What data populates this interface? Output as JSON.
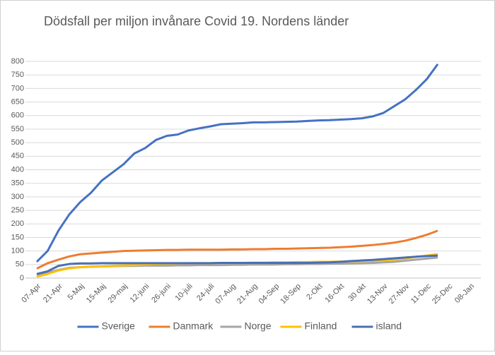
{
  "chart_data": {
    "type": "line",
    "title": "Dödsfall per miljon invånare Covid 19. Nordens länder",
    "categories": [
      "07-Apr",
      null,
      "21-Apr",
      null,
      "5-Maj",
      null,
      "15-Maj",
      null,
      "29-maj",
      null,
      "12-juni",
      null,
      "26-juni",
      null,
      "10-juli",
      null,
      "24-juli",
      null,
      "07-Aug",
      null,
      "21-Aug",
      null,
      "04-Sep",
      null,
      "18-Sep",
      null,
      "2-Okt",
      null,
      "16-Okt",
      null,
      "30 okt",
      null,
      "13-Nov",
      null,
      "27-Nov",
      null,
      "11-Dec",
      null,
      "25-Dec",
      null,
      "08-Jan"
    ],
    "series": [
      {
        "name": "Sverige",
        "color": "#4472c4",
        "values": [
          60,
          100,
          175,
          235,
          280,
          315,
          360,
          390,
          420,
          460,
          480,
          510,
          525,
          530,
          545,
          553,
          560,
          568,
          570,
          572,
          575,
          575,
          576,
          577,
          578,
          580,
          582,
          583,
          585,
          587,
          590,
          597,
          610,
          635,
          660,
          695,
          735,
          790,
          null,
          null,
          null
        ]
      },
      {
        "name": "Danmark",
        "color": "#ed7d31",
        "values": [
          35,
          55,
          68,
          80,
          88,
          91,
          94,
          97,
          100,
          101,
          102,
          103,
          104,
          104,
          105,
          105,
          105,
          105,
          106,
          106,
          107,
          107,
          108,
          108,
          109,
          110,
          111,
          112,
          114,
          116,
          119,
          122,
          126,
          131,
          138,
          148,
          160,
          175,
          null,
          null,
          null
        ]
      },
      {
        "name": "Norge",
        "color": "#a5a5a5",
        "values": [
          10,
          20,
          30,
          38,
          40,
          42,
          43,
          44,
          45,
          45,
          46,
          46,
          46,
          47,
          47,
          48,
          48,
          48,
          49,
          49,
          50,
          50,
          50,
          51,
          51,
          52,
          52,
          53,
          53,
          54,
          55,
          56,
          58,
          60,
          64,
          68,
          72,
          76,
          null,
          null,
          null
        ]
      },
      {
        "name": "Finland",
        "color": "#ffc000",
        "values": [
          5,
          15,
          28,
          36,
          40,
          42,
          43,
          45,
          47,
          48,
          50,
          52,
          53,
          54,
          55,
          55,
          55,
          56,
          56,
          56,
          57,
          57,
          58,
          58,
          59,
          59,
          60,
          60,
          61,
          62,
          63,
          64,
          66,
          68,
          72,
          78,
          83,
          88,
          null,
          null,
          null
        ]
      },
      {
        "name": "island",
        "color": "#4a6fb5",
        "values": [
          15,
          25,
          45,
          52,
          54,
          54,
          55,
          55,
          55,
          55,
          55,
          55,
          55,
          55,
          55,
          55,
          55,
          56,
          56,
          56,
          56,
          56,
          56,
          56,
          56,
          56,
          57,
          58,
          60,
          63,
          65,
          67,
          70,
          73,
          76,
          79,
          81,
          83,
          null,
          null,
          null
        ]
      }
    ],
    "ylim": [
      0,
      800
    ],
    "yticks": [
      0,
      50,
      100,
      150,
      200,
      250,
      300,
      350,
      400,
      450,
      500,
      550,
      600,
      650,
      700,
      750,
      800
    ],
    "grid": true,
    "legend": "bottom"
  }
}
